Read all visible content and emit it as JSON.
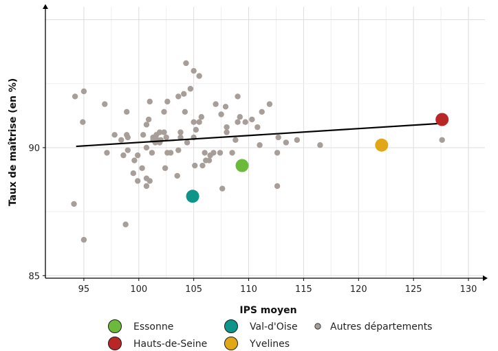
{
  "chart_data": {
    "type": "scatter",
    "title": "",
    "xlabel": "IPS moyen",
    "ylabel": "Taux de maîtrise (en %)",
    "xlim": [
      91.5,
      131.5
    ],
    "ylim": [
      84.9,
      95.5
    ],
    "x_ticks": [
      95,
      100,
      105,
      110,
      115,
      120,
      125,
      130
    ],
    "y_ticks": [
      85,
      90
    ],
    "grid": true,
    "legend_position": "bottom",
    "regression_line": {
      "x": [
        94.3,
        127.6
      ],
      "y": [
        90.05,
        90.95
      ],
      "color": "#000000"
    },
    "series": [
      {
        "name": "Essonne",
        "color": "#6cba3b",
        "size": "large",
        "points": [
          {
            "x": 109.4,
            "y": 89.3
          }
        ]
      },
      {
        "name": "Hauts-de-Seine",
        "color": "#b92626",
        "size": "large",
        "points": [
          {
            "x": 127.6,
            "y": 91.1
          }
        ]
      },
      {
        "name": "Val-d'Oise",
        "color": "#0e9488",
        "size": "large",
        "points": [
          {
            "x": 104.9,
            "y": 88.1
          }
        ]
      },
      {
        "name": "Yvelines",
        "color": "#e0a817",
        "size": "large",
        "points": [
          {
            "x": 122.1,
            "y": 90.1
          }
        ]
      },
      {
        "name": "Autres départements",
        "color": "#a89e99",
        "size": "small",
        "points": [
          {
            "x": 104.3,
            "y": 93.3
          },
          {
            "x": 105.0,
            "y": 93.0
          },
          {
            "x": 105.5,
            "y": 92.8
          },
          {
            "x": 104.7,
            "y": 92.3
          },
          {
            "x": 104.1,
            "y": 92.1
          },
          {
            "x": 95.0,
            "y": 92.2
          },
          {
            "x": 94.2,
            "y": 92.0
          },
          {
            "x": 103.6,
            "y": 92.0
          },
          {
            "x": 109.0,
            "y": 92.0
          },
          {
            "x": 96.9,
            "y": 91.7
          },
          {
            "x": 101.0,
            "y": 91.8
          },
          {
            "x": 102.6,
            "y": 91.8
          },
          {
            "x": 107.0,
            "y": 91.7
          },
          {
            "x": 107.9,
            "y": 91.6
          },
          {
            "x": 111.9,
            "y": 91.7
          },
          {
            "x": 98.9,
            "y": 91.4
          },
          {
            "x": 102.3,
            "y": 91.4
          },
          {
            "x": 104.2,
            "y": 91.4
          },
          {
            "x": 111.2,
            "y": 91.4
          },
          {
            "x": 107.5,
            "y": 91.3
          },
          {
            "x": 109.2,
            "y": 91.2
          },
          {
            "x": 94.9,
            "y": 91.0
          },
          {
            "x": 100.9,
            "y": 91.1
          },
          {
            "x": 105.7,
            "y": 91.2
          },
          {
            "x": 105.0,
            "y": 91.0
          },
          {
            "x": 105.5,
            "y": 91.0
          },
          {
            "x": 109.0,
            "y": 91.0
          },
          {
            "x": 109.7,
            "y": 91.0
          },
          {
            "x": 110.3,
            "y": 91.1
          },
          {
            "x": 100.7,
            "y": 90.9
          },
          {
            "x": 108.0,
            "y": 90.8
          },
          {
            "x": 110.8,
            "y": 90.8
          },
          {
            "x": 103.8,
            "y": 90.6
          },
          {
            "x": 101.9,
            "y": 90.6
          },
          {
            "x": 102.3,
            "y": 90.6
          },
          {
            "x": 105.2,
            "y": 90.7
          },
          {
            "x": 108.0,
            "y": 90.6
          },
          {
            "x": 97.8,
            "y": 90.5
          },
          {
            "x": 98.9,
            "y": 90.5
          },
          {
            "x": 99.0,
            "y": 90.4
          },
          {
            "x": 100.4,
            "y": 90.5
          },
          {
            "x": 101.3,
            "y": 90.4
          },
          {
            "x": 101.6,
            "y": 90.5
          },
          {
            "x": 102.5,
            "y": 90.4
          },
          {
            "x": 103.8,
            "y": 90.4
          },
          {
            "x": 105.0,
            "y": 90.4
          },
          {
            "x": 112.7,
            "y": 90.4
          },
          {
            "x": 98.4,
            "y": 90.3
          },
          {
            "x": 101.3,
            "y": 90.3
          },
          {
            "x": 101.7,
            "y": 90.3
          },
          {
            "x": 102.0,
            "y": 90.3
          },
          {
            "x": 104.4,
            "y": 90.2
          },
          {
            "x": 108.8,
            "y": 90.3
          },
          {
            "x": 113.4,
            "y": 90.2
          },
          {
            "x": 114.4,
            "y": 90.3
          },
          {
            "x": 101.5,
            "y": 90.2
          },
          {
            "x": 101.9,
            "y": 90.2
          },
          {
            "x": 111.0,
            "y": 90.1
          },
          {
            "x": 116.5,
            "y": 90.1
          },
          {
            "x": 127.6,
            "y": 90.3
          },
          {
            "x": 100.7,
            "y": 90.0
          },
          {
            "x": 97.1,
            "y": 89.8
          },
          {
            "x": 99.0,
            "y": 89.9
          },
          {
            "x": 101.2,
            "y": 89.8
          },
          {
            "x": 102.6,
            "y": 89.8
          },
          {
            "x": 102.9,
            "y": 89.8
          },
          {
            "x": 103.6,
            "y": 89.9
          },
          {
            "x": 106.0,
            "y": 89.8
          },
          {
            "x": 106.8,
            "y": 89.8
          },
          {
            "x": 107.4,
            "y": 89.8
          },
          {
            "x": 108.5,
            "y": 89.8
          },
          {
            "x": 112.6,
            "y": 89.8
          },
          {
            "x": 98.6,
            "y": 89.7
          },
          {
            "x": 99.9,
            "y": 89.7
          },
          {
            "x": 106.5,
            "y": 89.7
          },
          {
            "x": 99.6,
            "y": 89.5
          },
          {
            "x": 106.1,
            "y": 89.5
          },
          {
            "x": 106.4,
            "y": 89.5
          },
          {
            "x": 105.1,
            "y": 89.3
          },
          {
            "x": 105.8,
            "y": 89.3
          },
          {
            "x": 102.4,
            "y": 89.2
          },
          {
            "x": 100.3,
            "y": 89.2
          },
          {
            "x": 99.5,
            "y": 89.0
          },
          {
            "x": 103.5,
            "y": 88.9
          },
          {
            "x": 99.9,
            "y": 88.7
          },
          {
            "x": 100.7,
            "y": 88.8
          },
          {
            "x": 101.0,
            "y": 88.7
          },
          {
            "x": 100.7,
            "y": 88.5
          },
          {
            "x": 107.6,
            "y": 88.4
          },
          {
            "x": 112.6,
            "y": 88.5
          },
          {
            "x": 94.1,
            "y": 87.8
          },
          {
            "x": 98.8,
            "y": 87.0
          },
          {
            "x": 95.0,
            "y": 86.4
          }
        ]
      }
    ]
  },
  "legend": [
    {
      "label": "Essonne",
      "color": "#6cba3b",
      "size": "large"
    },
    {
      "label": "Val-d'Oise",
      "color": "#0e9488",
      "size": "large"
    },
    {
      "label": "Autres départements",
      "color": "#a89e99",
      "size": "small"
    },
    {
      "label": "Hauts-de-Seine",
      "color": "#b92626",
      "size": "large"
    },
    {
      "label": "Yvelines",
      "color": "#e0a817",
      "size": "large"
    }
  ]
}
